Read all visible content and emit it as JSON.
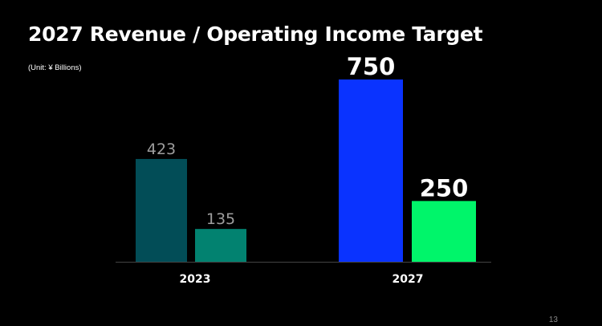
{
  "slide": {
    "title": "2027 Revenue / Operating Income Target",
    "unit_note": "(Unit: ¥ Billions)",
    "page_number": "13"
  },
  "chart_data": {
    "type": "bar",
    "title": "2027 Revenue / Operating Income Target",
    "unit": "(Unit: ¥ Billions)",
    "categories": [
      "2023",
      "2027"
    ],
    "series": [
      {
        "values": [
          423,
          750
        ]
      },
      {
        "values": [
          135,
          250
        ]
      }
    ],
    "data_labels": [
      [
        "423",
        "135"
      ],
      [
        "750",
        "250"
      ]
    ],
    "ylim": [
      0,
      750
    ],
    "grid": false,
    "colors": [
      [
        "#024d57",
        "#028270"
      ],
      [
        "#0a33ff",
        "#00f56a"
      ]
    ],
    "label_colors": [
      [
        "#9e9e9e",
        "#9e9e9e"
      ],
      [
        "#ffffff",
        "#ffffff"
      ]
    ],
    "baseline_color": "#444444"
  }
}
